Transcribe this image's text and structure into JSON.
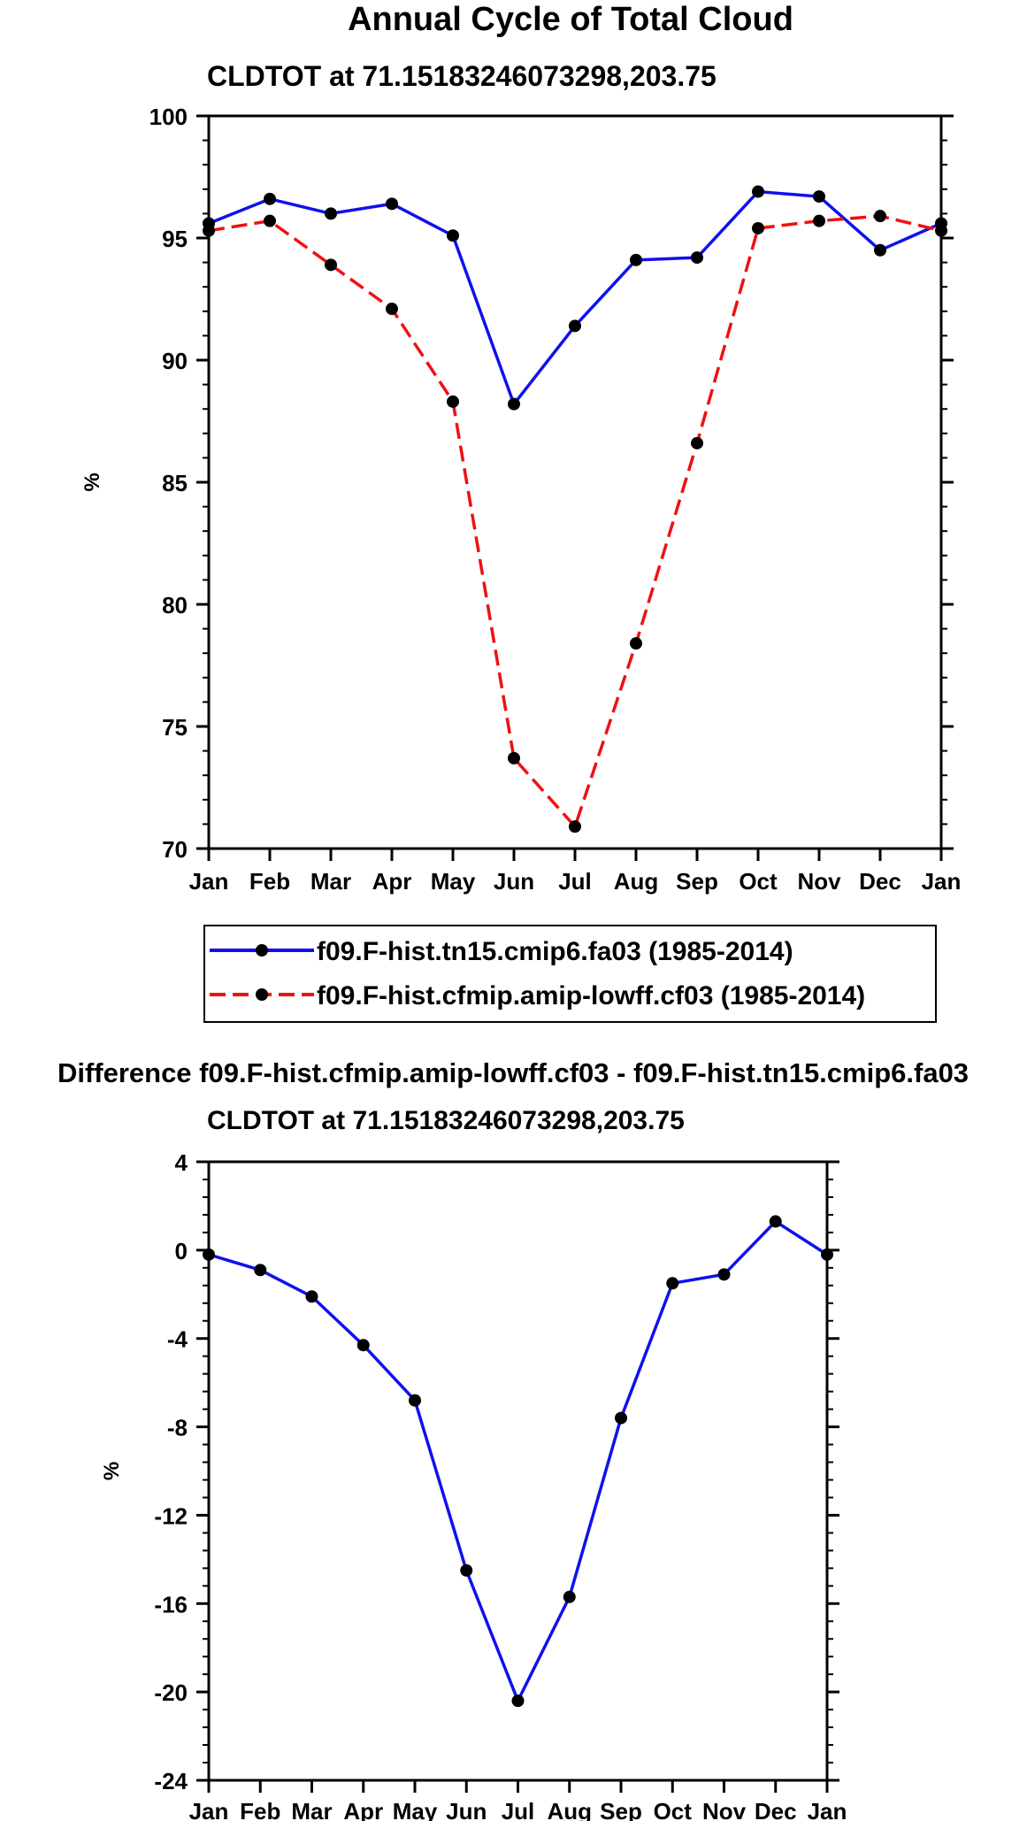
{
  "chart_data": [
    {
      "type": "line",
      "title": "Annual Cycle of Total Cloud",
      "subtitle": "CLDTOT at 71.15183246073298,203.75",
      "ylabel": "%",
      "xlabel": "",
      "categories": [
        "Jan",
        "Feb",
        "Mar",
        "Apr",
        "May",
        "Jun",
        "Jul",
        "Aug",
        "Sep",
        "Oct",
        "Nov",
        "Dec",
        "Jan"
      ],
      "ylim": [
        70,
        100
      ],
      "yticks": [
        70,
        75,
        80,
        85,
        90,
        95,
        100
      ],
      "grid": false,
      "legend_placement": "bottom-outside",
      "series": [
        {
          "name": "f09.F-hist.tn15.cmip6.fa03 (1985-2014)",
          "color": "#1010ee",
          "dash": "solid",
          "values": [
            95.6,
            96.6,
            96.0,
            96.4,
            95.1,
            88.2,
            91.4,
            94.1,
            94.2,
            96.9,
            96.7,
            94.5,
            95.6
          ]
        },
        {
          "name": "f09.F-hist.cfmip.amip-lowff.cf03 (1985-2014)",
          "color": "#ee1111",
          "dash": "dashed",
          "values": [
            95.3,
            95.7,
            93.9,
            92.1,
            88.3,
            73.7,
            70.9,
            78.4,
            86.6,
            95.4,
            95.7,
            95.9,
            95.3
          ]
        }
      ]
    },
    {
      "type": "line",
      "title": "Difference f09.F-hist.cfmip.amip-lowff.cf03 - f09.F-hist.tn15.cmip6.fa03",
      "subtitle": "CLDTOT at 71.15183246073298,203.75",
      "ylabel": "%",
      "xlabel": "",
      "categories": [
        "Jan",
        "Feb",
        "Mar",
        "Apr",
        "May",
        "Jun",
        "Jul",
        "Aug",
        "Sep",
        "Oct",
        "Nov",
        "Dec",
        "Jan"
      ],
      "ylim": [
        -24,
        4
      ],
      "yticks": [
        -24,
        -20,
        -16,
        -12,
        -8,
        -4,
        0,
        4
      ],
      "grid": false,
      "series": [
        {
          "color": "#1010ee",
          "dash": "solid",
          "values": [
            -0.2,
            -0.9,
            -2.1,
            -4.3,
            -6.8,
            -14.5,
            -20.4,
            -15.7,
            -7.6,
            -1.5,
            -1.1,
            1.3,
            -0.2
          ]
        }
      ]
    }
  ]
}
